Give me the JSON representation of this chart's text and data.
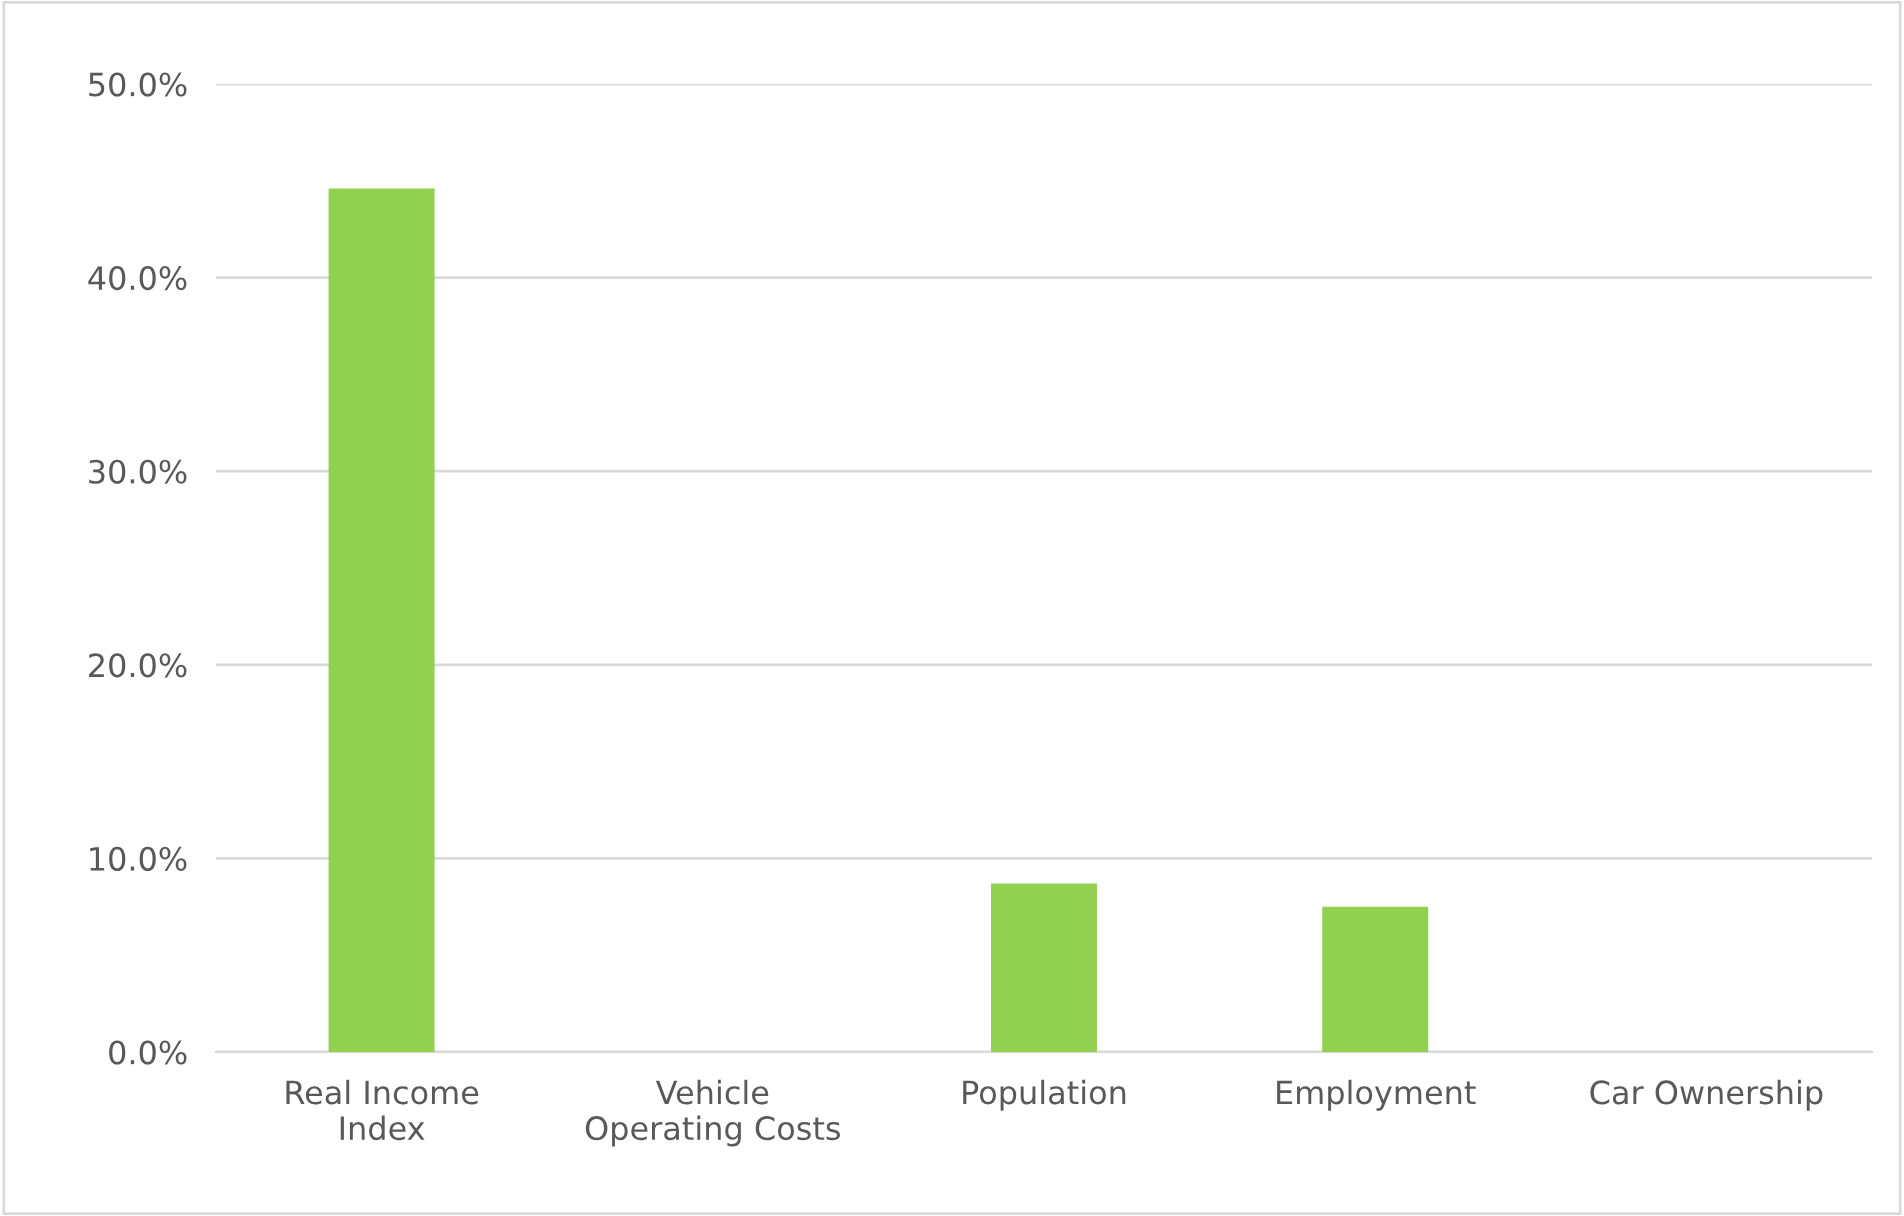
{
  "chart_data": {
    "type": "bar",
    "categories": [
      "Real Income\nIndex",
      "Vehicle\nOperating Costs",
      "Population",
      "Employment",
      "Car Ownership"
    ],
    "values": [
      44.6,
      0,
      8.7,
      7.5,
      0
    ],
    "color": "#92d050",
    "ylim": [
      0,
      50
    ],
    "yticks": [
      {
        "value": 0,
        "label": "0.0%"
      },
      {
        "value": 10,
        "label": "10.0%"
      },
      {
        "value": 20,
        "label": "20.0%"
      },
      {
        "value": 30,
        "label": "30.0%"
      },
      {
        "value": 40,
        "label": "40.0%"
      },
      {
        "value": 50,
        "label": "50.0%"
      }
    ],
    "grid": "y"
  }
}
